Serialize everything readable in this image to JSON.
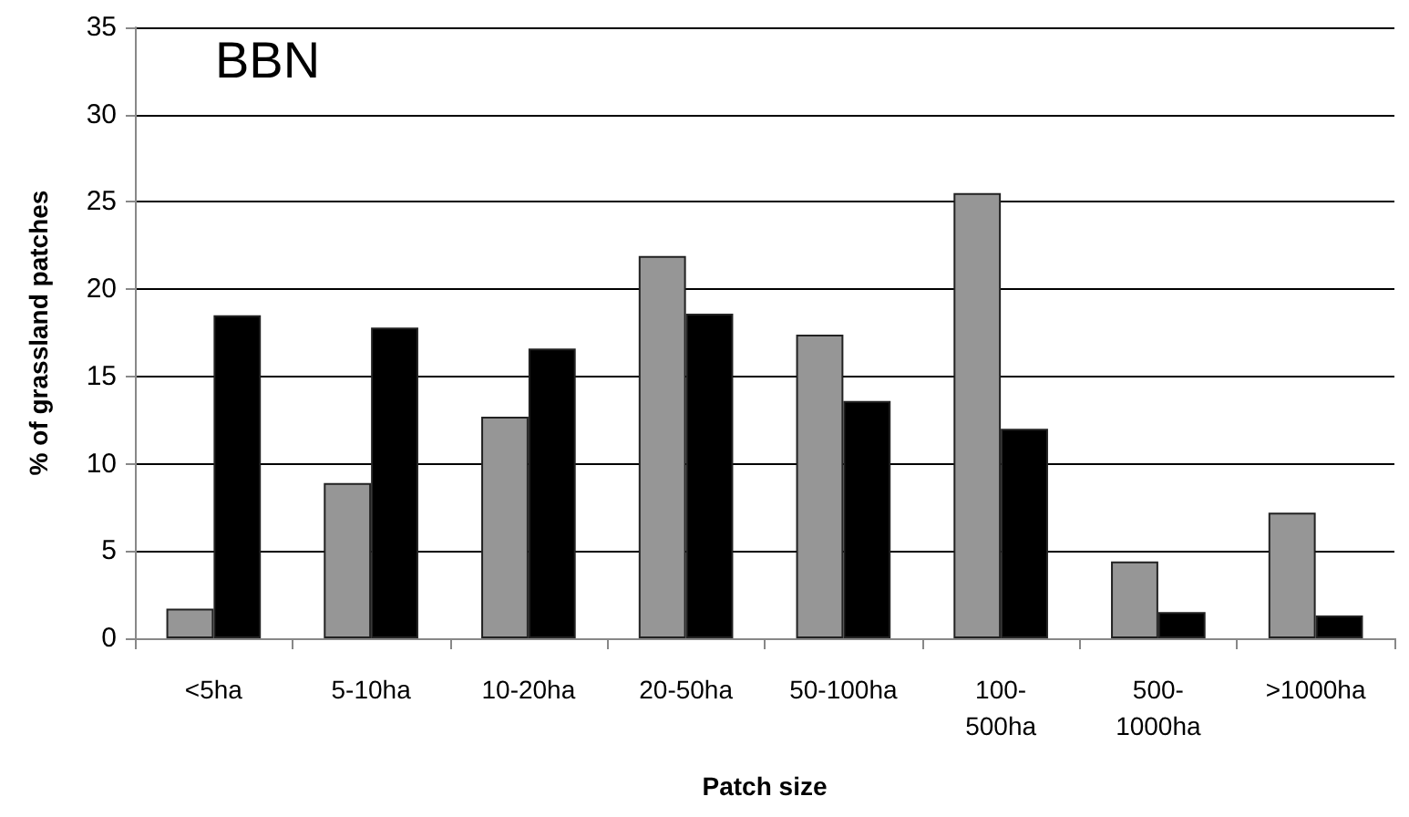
{
  "chart_data": {
    "type": "bar",
    "xlabel": "Patch size",
    "ylabel": "% of grassland patches",
    "annotations": [
      "BBN"
    ],
    "categories": [
      "<5ha",
      "5-10ha",
      "10-20ha",
      "20-50ha",
      "50-100ha",
      "100-500ha",
      "500-1000ha",
      ">1000ha"
    ],
    "series": [
      {
        "color": "#969696",
        "values": [
          1.7,
          8.9,
          12.7,
          21.9,
          17.4,
          25.5,
          4.4,
          7.2
        ]
      },
      {
        "color": "#000000",
        "values": [
          18.5,
          17.8,
          16.6,
          18.6,
          13.6,
          12.0,
          1.5,
          1.3
        ]
      }
    ],
    "ylim": [
      0,
      35
    ],
    "yticks": [
      0,
      5,
      10,
      15,
      20,
      25,
      30,
      35
    ],
    "grid": "y"
  }
}
